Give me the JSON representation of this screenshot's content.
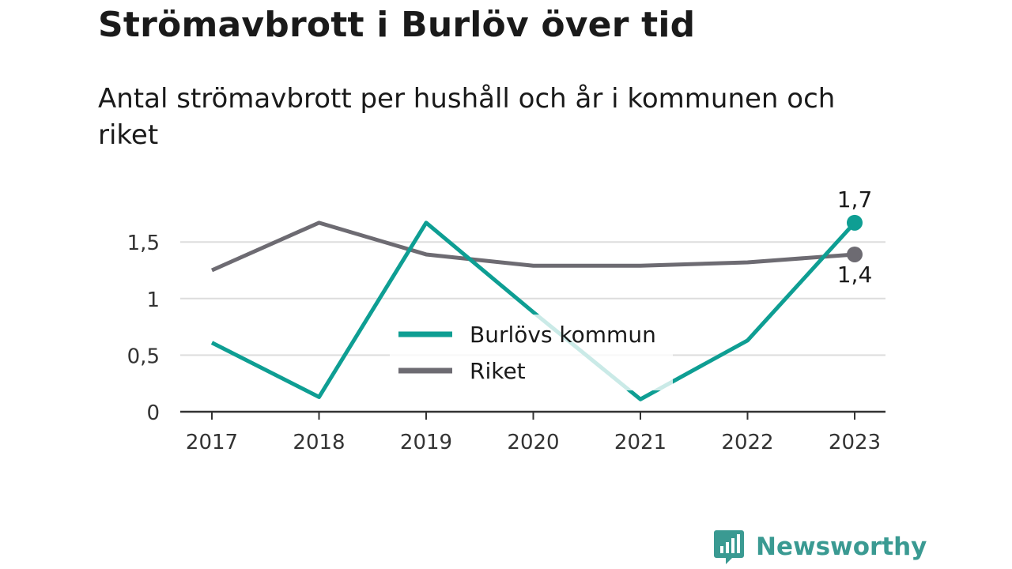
{
  "title": "Strömavbrott i Burlöv över tid",
  "subtitle": "Antal strömavbrott per hushåll och år i kommunen och riket",
  "brand": "Newsworthy",
  "colors": {
    "burlov": "#0e9e93",
    "riket": "#6d6b72",
    "grid": "#dddddd",
    "axis": "#333333"
  },
  "chart_data": {
    "type": "line",
    "x": [
      "2017",
      "2018",
      "2019",
      "2020",
      "2021",
      "2022",
      "2023"
    ],
    "series": [
      {
        "name": "Burlövs kommun",
        "values": [
          0.61,
          0.13,
          1.67,
          0.88,
          0.11,
          0.63,
          1.67
        ]
      },
      {
        "name": "Riket",
        "values": [
          1.25,
          1.67,
          1.39,
          1.29,
          1.29,
          1.32,
          1.39
        ]
      }
    ],
    "end_labels": [
      "1,7",
      "1,4"
    ],
    "y_ticks": [
      {
        "value": 0,
        "label": "0"
      },
      {
        "value": 0.5,
        "label": "0,5"
      },
      {
        "value": 1,
        "label": "1"
      },
      {
        "value": 1.5,
        "label": "1,5"
      }
    ],
    "ylim": [
      0,
      1.75
    ],
    "grid": true,
    "legend": "center"
  }
}
